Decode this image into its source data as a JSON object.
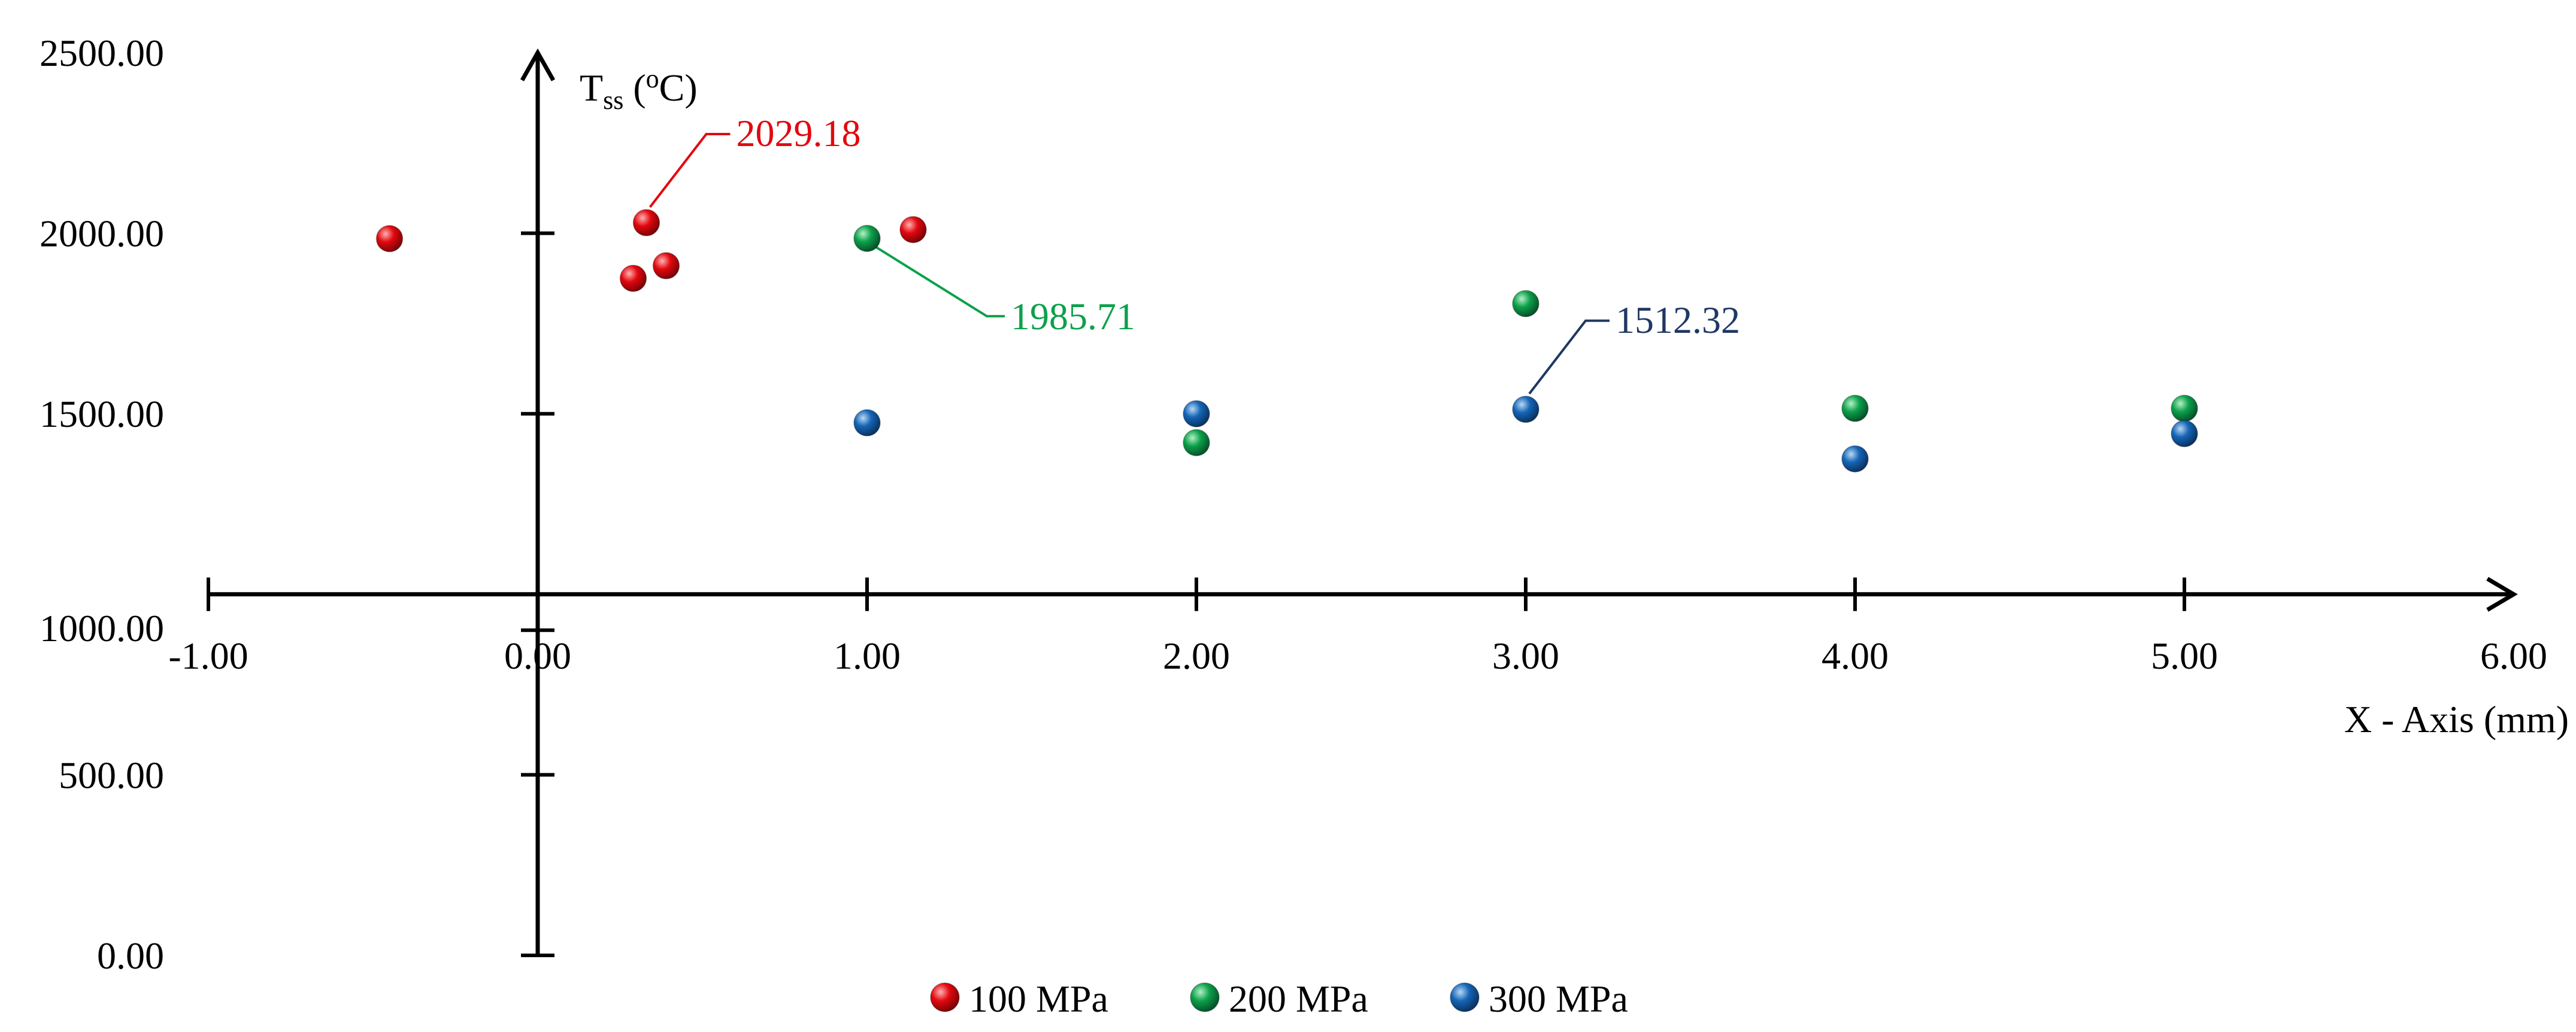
{
  "chart_data": {
    "type": "scatter",
    "title": "",
    "xlabel": "X - Axis (mm)",
    "ylabel": {
      "main": "T",
      "sub": "ss",
      "unit_open": " (",
      "unit_sup": "o",
      "unit_close": "C)"
    },
    "xlim": [
      -1,
      6
    ],
    "ylim": [
      0,
      2500
    ],
    "x_crosses_y_at": 1000,
    "y_crosses_x_at": 0,
    "x_ticks": [
      -1,
      0,
      1,
      2,
      3,
      4,
      5,
      6
    ],
    "x_tick_labels": [
      "-1.00",
      "0.00",
      "1.00",
      "2.00",
      "3.00",
      "4.00",
      "5.00",
      "6.00"
    ],
    "y_ticks": [
      0,
      500,
      1000,
      1500,
      2000,
      2500
    ],
    "y_tick_labels": [
      "0.00",
      "500.00",
      "1000.00",
      "1500.00",
      "2000.00",
      "2500.00"
    ],
    "grid": false,
    "legend_position": "bottom-center",
    "series": [
      {
        "name": "100 MPa",
        "color": "#e3080f",
        "points": [
          {
            "x": -0.45,
            "y": 1985
          },
          {
            "x": 0.29,
            "y": 1875
          },
          {
            "x": 0.33,
            "y": 2029.18
          },
          {
            "x": 0.39,
            "y": 1910
          },
          {
            "x": 1.14,
            "y": 2010
          }
        ]
      },
      {
        "name": "200 MPa",
        "color": "#0ca14a",
        "points": [
          {
            "x": 1.0,
            "y": 1985.71
          },
          {
            "x": 2.0,
            "y": 1420
          },
          {
            "x": 3.0,
            "y": 1805
          },
          {
            "x": 4.0,
            "y": 1515
          },
          {
            "x": 5.0,
            "y": 1515
          }
        ]
      },
      {
        "name": "300 MPa",
        "color": "#1565b6",
        "points": [
          {
            "x": 1.0,
            "y": 1475
          },
          {
            "x": 2.0,
            "y": 1500
          },
          {
            "x": 3.0,
            "y": 1512.32
          },
          {
            "x": 4.0,
            "y": 1375
          },
          {
            "x": 5.0,
            "y": 1445
          }
        ]
      }
    ],
    "annotations": [
      {
        "text": "2029.18",
        "x": 0.33,
        "y": 2029.18,
        "color": "#e3080f",
        "placement": "upper-right"
      },
      {
        "text": "1985.71",
        "x": 1.0,
        "y": 1985.71,
        "color": "#0ca14a",
        "placement": "lower-right"
      },
      {
        "text": "1512.32",
        "x": 3.0,
        "y": 1512.32,
        "color": "#1f3864",
        "placement": "upper-right"
      }
    ]
  }
}
